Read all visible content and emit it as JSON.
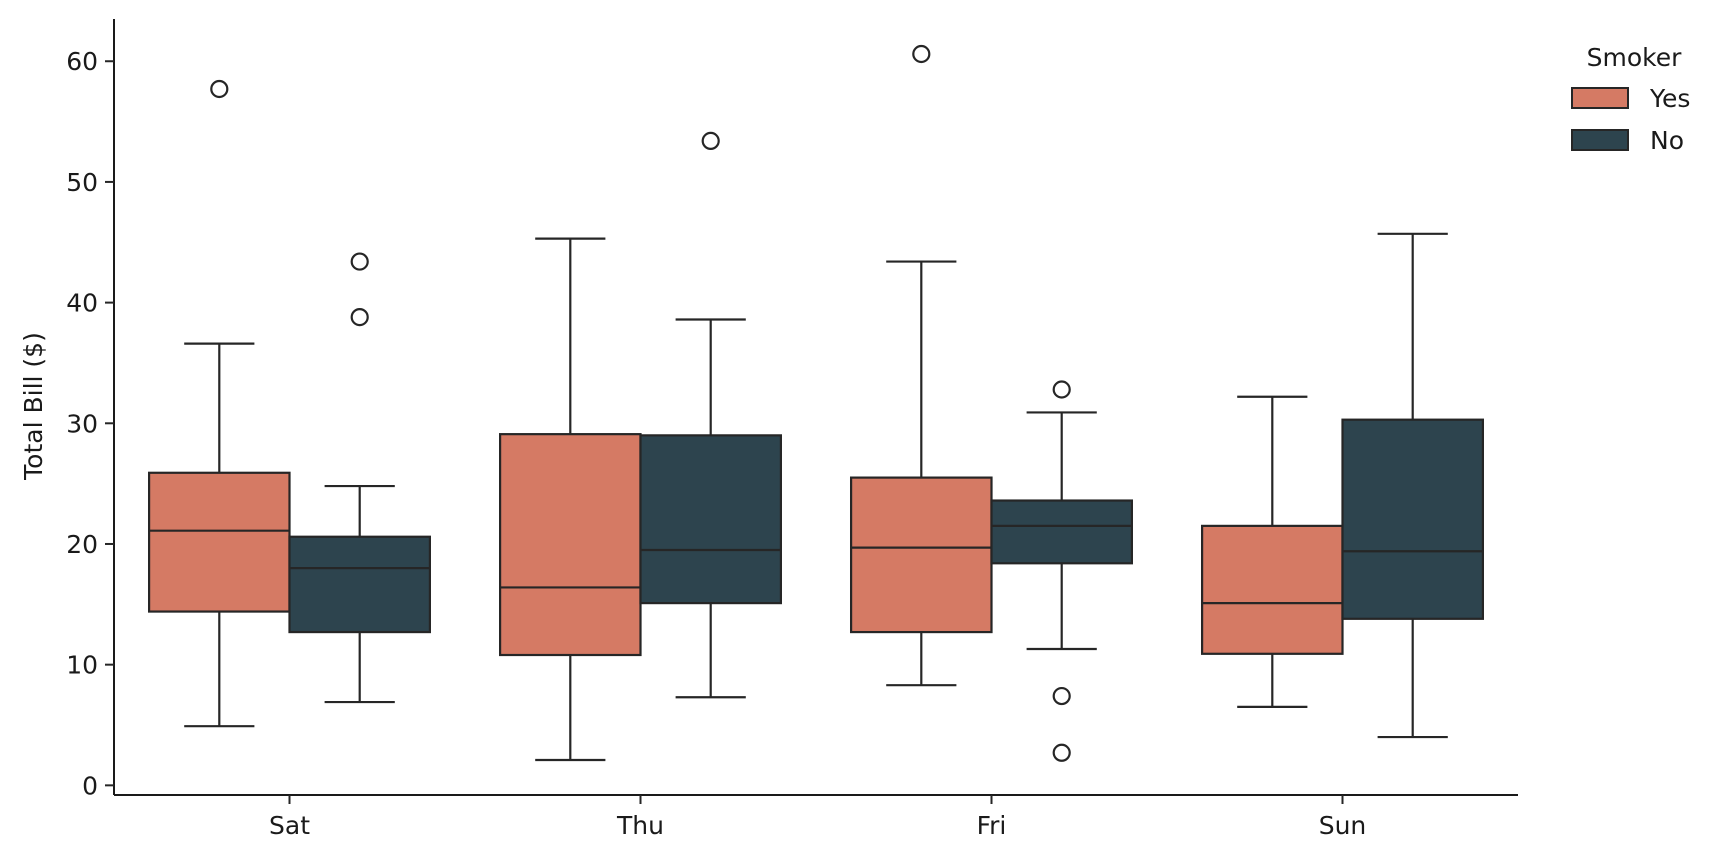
{
  "chart_data": {
    "type": "box",
    "categories": [
      "Sat",
      "Thu",
      "Fri",
      "Sun"
    ],
    "ylabel": "Total Bill ($)",
    "xlabel": "",
    "ylim": [
      -0.8,
      63.5
    ],
    "yticks": [
      0,
      10,
      20,
      30,
      40,
      50,
      60
    ],
    "legend": {
      "title": "Smoker",
      "position": "top-right"
    },
    "series": [
      {
        "name": "Yes",
        "color": "#d57a64",
        "boxes": [
          {
            "category": "Sat",
            "whisker_low": 4.9,
            "q1": 14.4,
            "median": 21.1,
            "q3": 25.9,
            "whisker_high": 36.6,
            "outliers": [
              57.7
            ]
          },
          {
            "category": "Thu",
            "whisker_low": 2.1,
            "q1": 10.8,
            "median": 16.4,
            "q3": 29.1,
            "whisker_high": 45.3,
            "outliers": []
          },
          {
            "category": "Fri",
            "whisker_low": 8.3,
            "q1": 12.7,
            "median": 19.7,
            "q3": 25.5,
            "whisker_high": 43.4,
            "outliers": [
              60.6
            ]
          },
          {
            "category": "Sun",
            "whisker_low": 6.5,
            "q1": 10.9,
            "median": 15.1,
            "q3": 21.5,
            "whisker_high": 32.2,
            "outliers": []
          }
        ]
      },
      {
        "name": "No",
        "color": "#2d444e",
        "boxes": [
          {
            "category": "Sat",
            "whisker_low": 6.9,
            "q1": 12.7,
            "median": 18.0,
            "q3": 20.6,
            "whisker_high": 24.8,
            "outliers": [
              43.4,
              38.8
            ]
          },
          {
            "category": "Thu",
            "whisker_low": 7.3,
            "q1": 15.1,
            "median": 19.5,
            "q3": 29.0,
            "whisker_high": 38.6,
            "outliers": [
              53.4
            ]
          },
          {
            "category": "Fri",
            "whisker_low": 11.3,
            "q1": 18.4,
            "median": 21.5,
            "q3": 23.6,
            "whisker_high": 30.9,
            "outliers": [
              32.8,
              7.4,
              2.7
            ]
          },
          {
            "category": "Sun",
            "whisker_low": 4.0,
            "q1": 13.8,
            "median": 19.4,
            "q3": 30.3,
            "whisker_high": 45.7,
            "outliers": []
          }
        ]
      }
    ]
  }
}
